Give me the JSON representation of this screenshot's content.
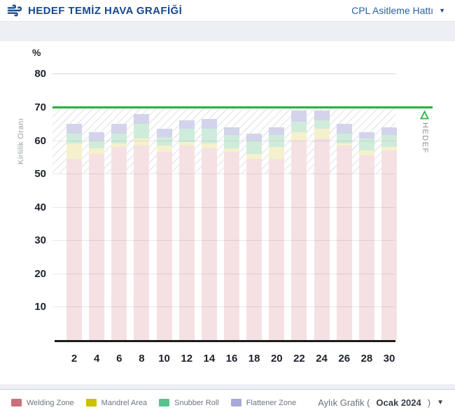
{
  "header": {
    "title": "HEDEF TEMİZ HAVA GRAFİĞİ",
    "line_selector": {
      "label": "CPL Asitleme Hattı"
    }
  },
  "chart_data": {
    "type": "bar",
    "stacked": true,
    "title": "HEDEF TEMİZ HAVA GRAFİĞİ",
    "unit_label": "%",
    "ylabel": "Kirlilik Oranı",
    "xlabel": "",
    "ylim": [
      0,
      85
    ],
    "yticks": [
      10,
      20,
      30,
      40,
      50,
      60,
      70,
      80
    ],
    "grid": true,
    "legend_position": "bottom",
    "target": {
      "value": 70,
      "label": "HEDEF",
      "color": "#25b33e"
    },
    "hatch_band": [
      50,
      70
    ],
    "categories": [
      2,
      4,
      6,
      8,
      10,
      12,
      14,
      16,
      18,
      20,
      22,
      24,
      26,
      28,
      30
    ],
    "series": [
      {
        "name": "Welding Zone",
        "color": "#c9707c",
        "fill": "#f5e0e3",
        "values": [
          54.5,
          56,
          58,
          58.5,
          56.5,
          58.5,
          57.5,
          56.5,
          54.5,
          54.5,
          60,
          60.5,
          58.5,
          55.5,
          57
        ]
      },
      {
        "name": "Mandrel Area",
        "color": "#ccc100",
        "fill": "#f5f1cd",
        "values": [
          4.5,
          1.5,
          1,
          2,
          2,
          1,
          1.5,
          1,
          1.5,
          3.5,
          2.5,
          3,
          0.5,
          1.5,
          1
        ]
      },
      {
        "name": "Snubber Roll",
        "color": "#57c28b",
        "fill": "#cfecda",
        "values": [
          3,
          2.5,
          3,
          4.5,
          2.5,
          4,
          4.5,
          4,
          4,
          3.5,
          3,
          2.5,
          3,
          3.5,
          3.5
        ]
      },
      {
        "name": "Flattener Zone",
        "color": "#a7aad7",
        "fill": "#d3d4eb",
        "values": [
          3,
          2.5,
          3,
          3,
          2.5,
          2.5,
          3,
          2.5,
          2,
          2.5,
          3.5,
          3,
          3,
          2,
          2.5
        ]
      }
    ]
  },
  "footer": {
    "period_selector": {
      "prefix": "Aylık Grafik (",
      "value": "Ocak 2024",
      "suffix": ")"
    }
  }
}
